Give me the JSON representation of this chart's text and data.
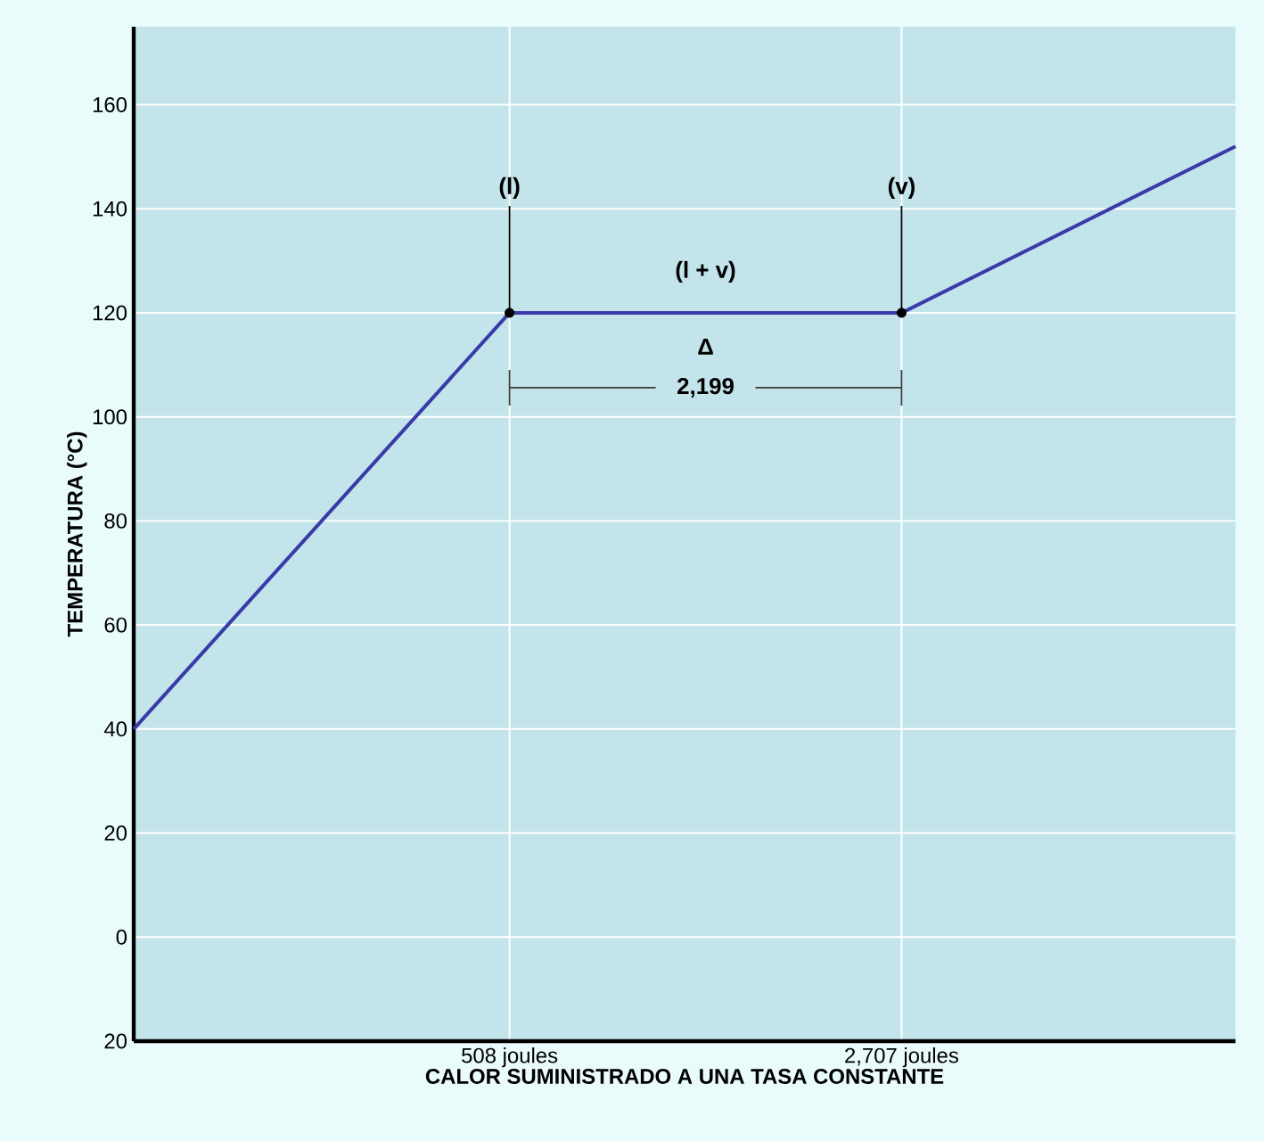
{
  "chart_data": {
    "type": "line",
    "xlabel": "CALOR SUMINISTRADO A UNA TASA CONSTANTE",
    "ylabel": "TEMPERATURA (°C)",
    "series": [
      {
        "color": "#3a3aa8",
        "x": [
          -1600,
          508,
          2707,
          4580
        ],
        "values": [
          40,
          120,
          120,
          152
        ]
      },
      {
        "type": "scatter",
        "color": "#000000",
        "marker": "circle",
        "x": [
          508,
          2707
        ],
        "values": [
          120,
          120
        ]
      }
    ],
    "xlim": [
      -1600,
      4580
    ],
    "ylim": [
      -20,
      175
    ],
    "xticks": [
      {
        "value": 508,
        "label": "508 joules"
      },
      {
        "value": 2707,
        "label": "2,707 joules"
      }
    ],
    "yticks": [
      {
        "value": -20,
        "label": "20"
      },
      0,
      20,
      40,
      60,
      80,
      100,
      120,
      140,
      160
    ],
    "grid": true,
    "annotations": [
      {
        "text": "(l)",
        "x": 508,
        "y": 120
      },
      {
        "text": "(v)",
        "x": 2707,
        "y": 120
      },
      "(l + v)",
      "Δ",
      "2,199"
    ]
  }
}
